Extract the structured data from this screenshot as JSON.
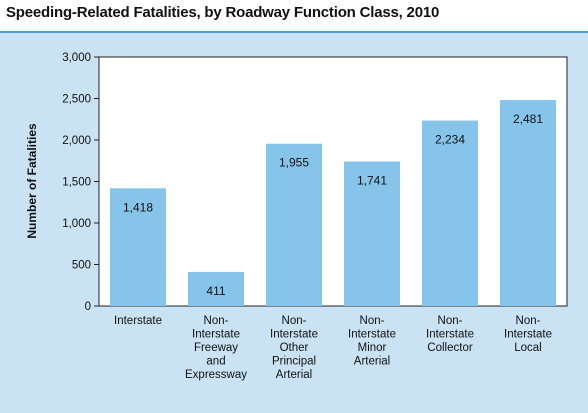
{
  "title": "Speeding-Related Fatalities, by Roadway Function Class, 2010",
  "chart_data": {
    "type": "bar",
    "title": "Speeding-Related Fatalities, by Roadway Function Class, 2010",
    "xlabel": "",
    "ylabel": "Number of Fatalities",
    "ylim": [
      0,
      3000
    ],
    "yticks": [
      "0",
      "500",
      "1,000",
      "1,500",
      "2,000",
      "2,500",
      "3,000"
    ],
    "categories": [
      [
        "Interstate"
      ],
      [
        "Non-",
        "Interstate",
        "Freeway",
        "and",
        "Expressway"
      ],
      [
        "Non-",
        "Interstate",
        "Other",
        "Principal",
        "Arterial"
      ],
      [
        "Non-",
        "Interstate",
        "Minor",
        "Arterial"
      ],
      [
        "Non-",
        "Interstate",
        "Collector"
      ],
      [
        "Non-",
        "Interstate",
        "Local"
      ]
    ],
    "values": [
      1418,
      411,
      1955,
      1741,
      2234,
      2481
    ],
    "data_labels": [
      "1,418",
      "411",
      "1,955",
      "1,741",
      "2,234",
      "2,481"
    ],
    "grid": false,
    "colors": {
      "bar": "#87c4ea",
      "panel_background": "#c9e3f5",
      "plot_background": "#ffffff",
      "accent_rule": "#4a9fd6"
    }
  }
}
